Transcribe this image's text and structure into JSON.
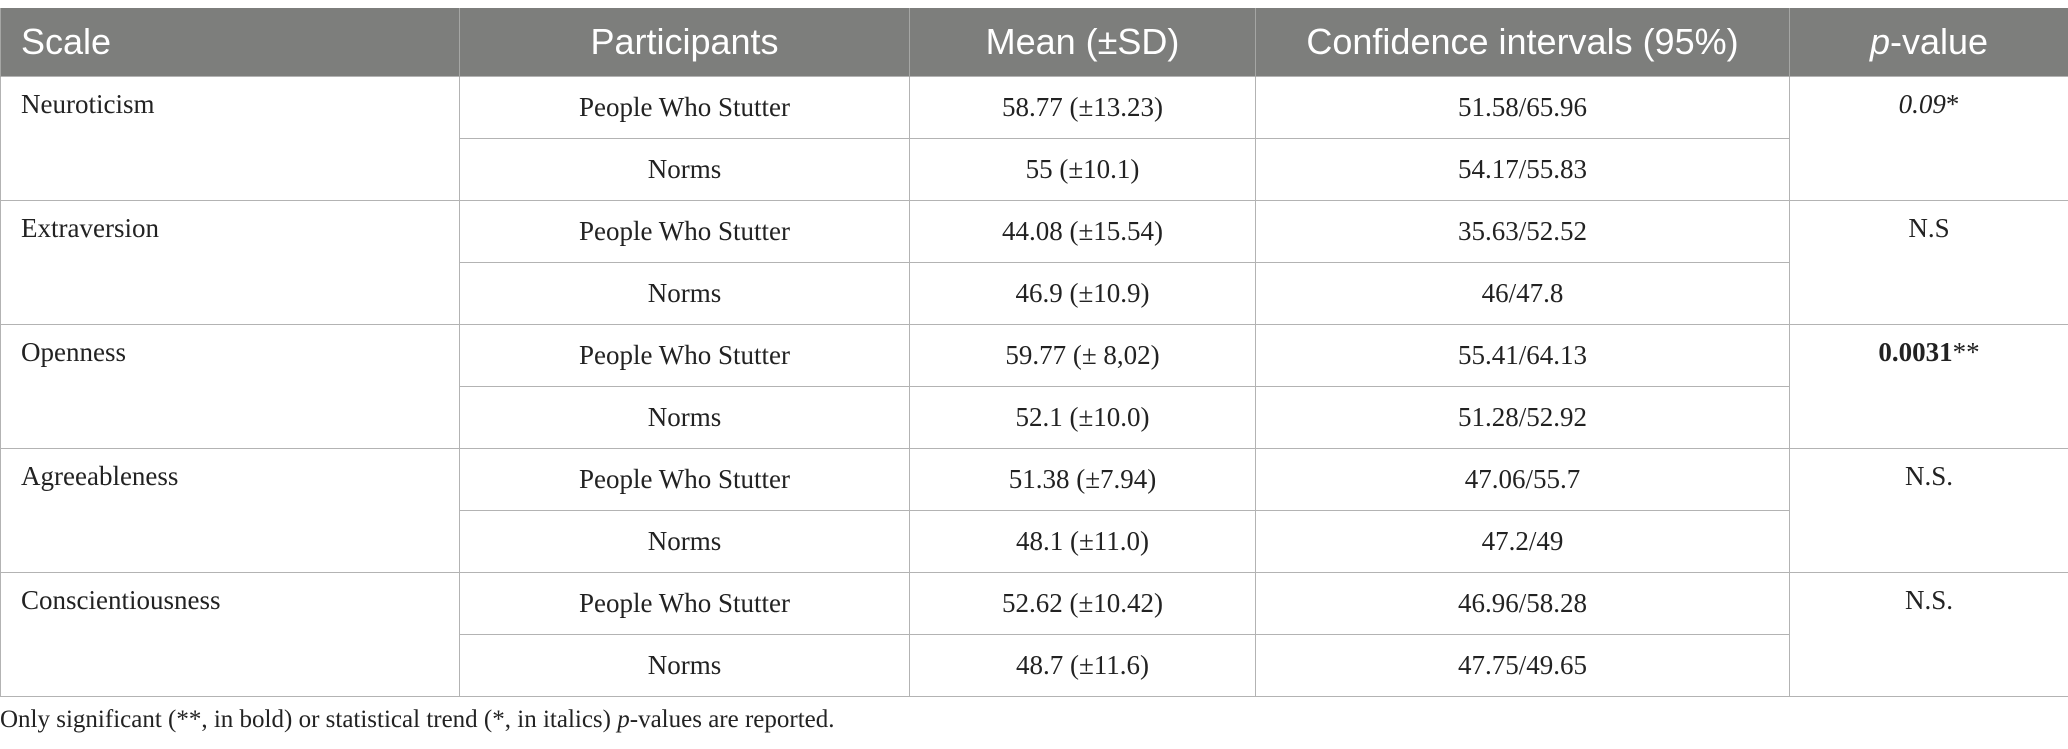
{
  "table": {
    "headers": {
      "scale": "Scale",
      "participants": "Participants",
      "mean": "Mean (±SD)",
      "ci": "Confidence intervals (95%)",
      "p_letter": "p",
      "p_rest": "-value"
    },
    "groups": [
      {
        "scale": "Neuroticism",
        "p_value": "0.09",
        "p_mark": "*",
        "p_style": "italic",
        "rows": [
          {
            "participants": "People Who Stutter",
            "mean": "58.77 (±13.23)",
            "ci": "51.58/65.96"
          },
          {
            "participants": "Norms",
            "mean": "55 (±10.1)",
            "ci": "54.17/55.83"
          }
        ]
      },
      {
        "scale": "Extraversion",
        "p_value": "N.S",
        "p_mark": "",
        "p_style": "normal",
        "rows": [
          {
            "participants": "People Who Stutter",
            "mean": "44.08 (±15.54)",
            "ci": "35.63/52.52"
          },
          {
            "participants": "Norms",
            "mean": "46.9 (±10.9)",
            "ci": "46/47.8"
          }
        ]
      },
      {
        "scale": "Openness",
        "p_value": "0.0031",
        "p_mark": "**",
        "p_style": "bold",
        "rows": [
          {
            "participants": "People Who Stutter",
            "mean": "59.77 (± 8,02)",
            "ci": "55.41/64.13"
          },
          {
            "participants": "Norms",
            "mean": "52.1 (±10.0)",
            "ci": "51.28/52.92"
          }
        ]
      },
      {
        "scale": "Agreeableness",
        "p_value": "N.S.",
        "p_mark": "",
        "p_style": "normal",
        "rows": [
          {
            "participants": "People Who Stutter",
            "mean": "51.38 (±7.94)",
            "ci": "47.06/55.7"
          },
          {
            "participants": "Norms",
            "mean": "48.1 (±11.0)",
            "ci": "47.2/49"
          }
        ]
      },
      {
        "scale": "Conscientiousness",
        "p_value": "N.S.",
        "p_mark": "",
        "p_style": "normal",
        "rows": [
          {
            "participants": "People Who Stutter",
            "mean": "52.62 (±10.42)",
            "ci": "46.96/58.28"
          },
          {
            "participants": "Norms",
            "mean": "48.7 (±11.6)",
            "ci": "47.75/49.65"
          }
        ]
      }
    ]
  },
  "note": {
    "before": "Only significant (**, in bold) or statistical trend (*, in italics) ",
    "p_letter": "p",
    "after": "-values are reported."
  },
  "colors": {
    "header_bg": "#7d7e7c",
    "header_text": "#ffffff",
    "border": "#b3b3b3",
    "text": "#222222"
  }
}
